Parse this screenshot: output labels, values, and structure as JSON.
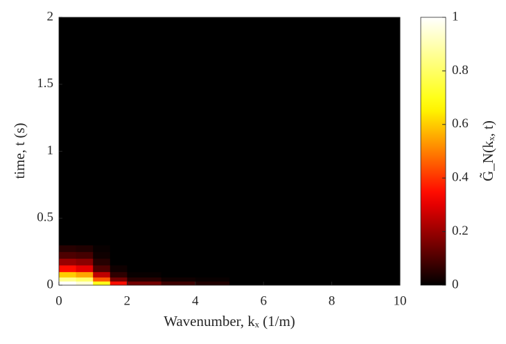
{
  "chart_data": {
    "type": "heatmap",
    "xlabel": "Wavenumber, kₓ (1/m)",
    "ylabel": "time, t (s)",
    "colorbar_label": "G̃_N(kₓ, t)",
    "colormap": "hot",
    "xbins": [
      0,
      0.5,
      1,
      1.5,
      2,
      3,
      4,
      5,
      10
    ],
    "ybins": [
      0,
      0.03,
      0.06,
      0.1,
      0.15,
      0.2,
      0.25,
      0.3,
      2
    ],
    "z": [
      [
        1,
        0.95,
        0.7,
        0.35,
        0.15,
        0.08,
        0.04,
        0
      ],
      [
        0.85,
        0.8,
        0.45,
        0.15,
        0.05,
        0.02,
        0.01,
        0
      ],
      [
        0.6,
        0.55,
        0.25,
        0.06,
        0.01,
        0,
        0,
        0
      ],
      [
        0.35,
        0.3,
        0.1,
        0.02,
        0,
        0,
        0,
        0
      ],
      [
        0.2,
        0.18,
        0.05,
        0,
        0,
        0,
        0,
        0
      ],
      [
        0.1,
        0.09,
        0.02,
        0,
        0,
        0,
        0,
        0
      ],
      [
        0.05,
        0.04,
        0.01,
        0,
        0,
        0,
        0,
        0
      ],
      [
        0,
        0,
        0,
        0,
        0,
        0,
        0,
        0
      ]
    ],
    "xlim": [
      0,
      10
    ],
    "xticks": [
      0,
      2,
      4,
      6,
      8,
      10
    ],
    "ylim": [
      0,
      2
    ],
    "yticks": [
      0,
      0.5,
      1,
      1.5,
      2
    ],
    "clim": [
      0,
      1
    ],
    "cticks": [
      0,
      0.2,
      0.4,
      0.6,
      0.8,
      1
    ]
  }
}
